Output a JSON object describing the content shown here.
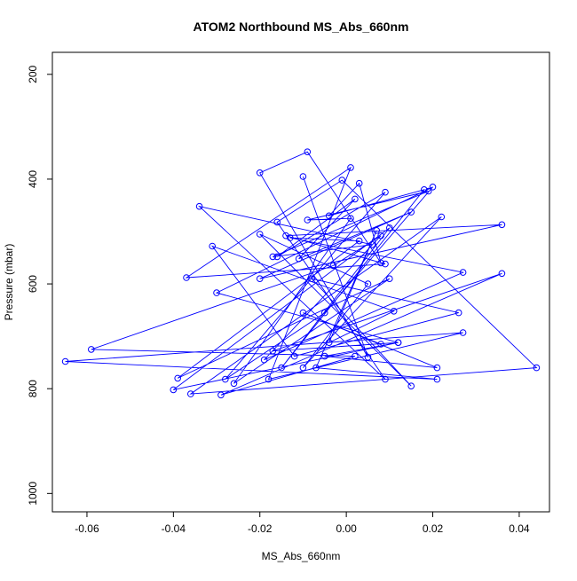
{
  "chart_data": {
    "type": "line",
    "title": "ATOM2 Northbound MS_Abs_660nm",
    "xlabel": "MS_Abs_660nm",
    "ylabel": "Pressure (mbar)",
    "xlim": [
      -0.068,
      0.047
    ],
    "ylim": [
      1035,
      158
    ],
    "y_reversed": true,
    "grid": false,
    "x_ticks": [
      -0.06,
      -0.04,
      -0.02,
      0.0,
      0.02,
      0.04
    ],
    "x_tick_labels": [
      "-0.06",
      "-0.04",
      "-0.02",
      "0.00",
      "0.02",
      "0.04"
    ],
    "y_ticks": [
      200,
      400,
      600,
      800,
      1000
    ],
    "y_tick_labels": [
      "200",
      "400",
      "600",
      "800",
      "1000"
    ],
    "color": "#0000ff",
    "series": [
      {
        "x": [
          -0.01,
          0.005,
          -0.02,
          -0.009,
          0.008,
          0.003,
          -0.004,
          0.018,
          -0.015,
          0.01,
          -0.04,
          0.012,
          -0.03,
          0.02,
          -0.005,
          -0.028,
          0.009,
          -0.016,
          0.002,
          -0.011,
          0.015,
          -0.02,
          0.036,
          -0.014,
          0.009,
          -0.037,
          0.001,
          -0.018,
          0.027,
          -0.065,
          0.021,
          -0.007,
          0.007,
          -0.004,
          0.011,
          -0.031,
          -0.012,
          0.026,
          -0.008,
          0.015,
          -0.02,
          0.005,
          -0.01,
          0.022,
          -0.036,
          0.044,
          -0.001,
          -0.016,
          0.009,
          -0.034,
          0.006,
          -0.017,
          0.019,
          -0.009,
          0.001,
          -0.026,
          0.01,
          -0.039,
          0.003,
          -0.013,
          0.027,
          -0.019,
          0.008,
          -0.003,
          -0.059,
          0.002,
          -0.029,
          0.036,
          -0.017,
          0.012,
          -0.005,
          0.021,
          -0.01,
          0.008
        ],
        "y": [
          395,
          740,
          388,
          348,
          560,
          408,
          470,
          420,
          760,
          493,
          802,
          712,
          617,
          415,
          655,
          782,
          425,
          548,
          438,
          552,
          463,
          590,
          487,
          508,
          562,
          588,
          378,
          782,
          693,
          748,
          782,
          760,
          498,
          712,
          652,
          528,
          738,
          655,
          590,
          795,
          505,
          600,
          760,
          472,
          810,
          760,
          402,
          482,
          782,
          452,
          525,
          548,
          423,
          478,
          475,
          790,
          590,
          780,
          518,
          512,
          578,
          745,
          508,
          565,
          725,
          738,
          812,
          580,
          728,
          712,
          738,
          760,
          655,
          715
        ]
      }
    ]
  }
}
